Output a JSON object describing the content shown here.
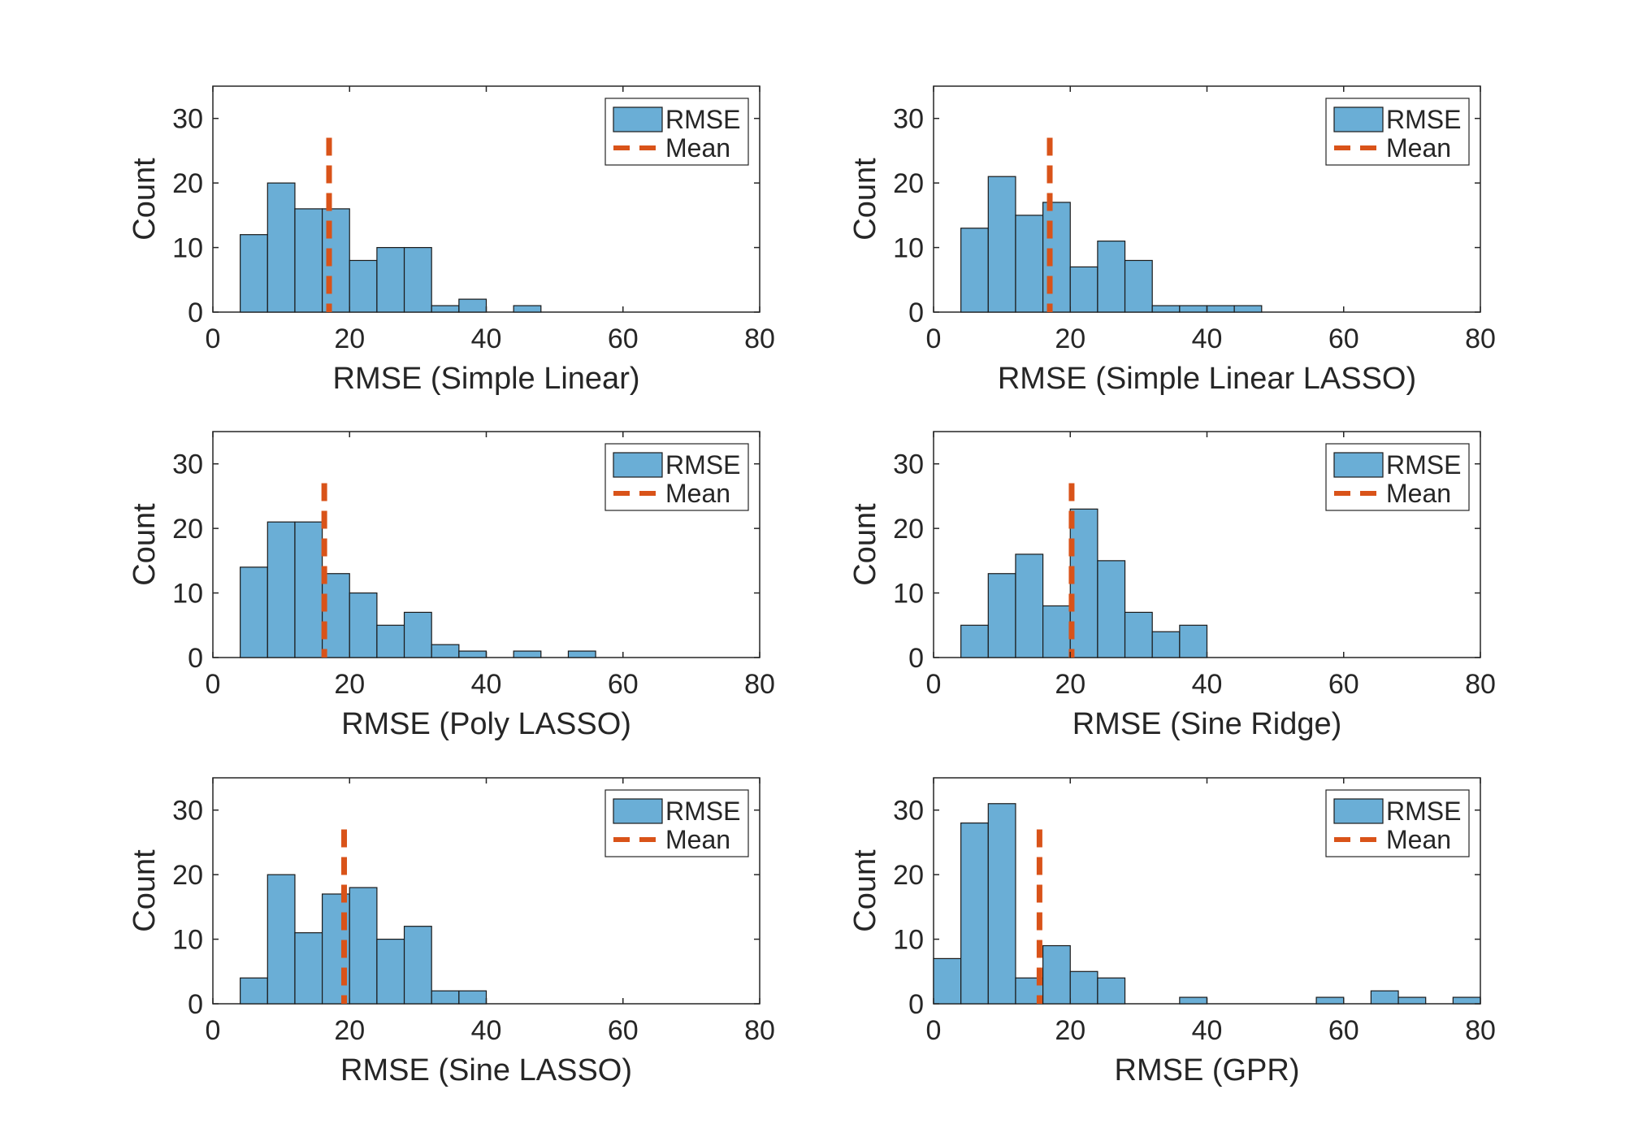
{
  "style": {
    "bar_fill": "#6aaed6",
    "bar_edge": "#1a1a1a",
    "mean_color": "#d95319",
    "axis_color": "#262626"
  },
  "legend": {
    "bar_label": "RMSE",
    "mean_label": "Mean",
    "placement": "top-right"
  },
  "chart_data": [
    {
      "type": "bar",
      "xlabel": "RMSE (Simple Linear)",
      "ylabel": "Count",
      "xlim": [
        0,
        80
      ],
      "ylim": [
        0,
        35
      ],
      "xticks": [
        0,
        20,
        40,
        60,
        80
      ],
      "yticks": [
        0,
        10,
        20,
        30
      ],
      "bin_edges": [
        4,
        8,
        12,
        16,
        20,
        24,
        28,
        32,
        36,
        40,
        44,
        48
      ],
      "values": [
        12,
        20,
        16,
        16,
        8,
        10,
        10,
        1,
        2,
        0,
        1
      ],
      "mean": 17
    },
    {
      "type": "bar",
      "xlabel": "RMSE (Simple Linear LASSO)",
      "ylabel": "Count",
      "xlim": [
        0,
        80
      ],
      "ylim": [
        0,
        35
      ],
      "xticks": [
        0,
        20,
        40,
        60,
        80
      ],
      "yticks": [
        0,
        10,
        20,
        30
      ],
      "bin_edges": [
        4,
        8,
        12,
        16,
        20,
        24,
        28,
        32,
        36,
        40,
        44,
        48
      ],
      "values": [
        13,
        21,
        15,
        17,
        7,
        11,
        8,
        1,
        1,
        1,
        1
      ],
      "mean": 17
    },
    {
      "type": "bar",
      "xlabel": "RMSE (Poly LASSO)",
      "ylabel": "Count",
      "xlim": [
        0,
        80
      ],
      "ylim": [
        0,
        35
      ],
      "xticks": [
        0,
        20,
        40,
        60,
        80
      ],
      "yticks": [
        0,
        10,
        20,
        30
      ],
      "bin_edges": [
        4,
        8,
        12,
        16,
        20,
        24,
        28,
        32,
        36,
        40,
        44,
        48,
        52,
        56
      ],
      "values": [
        14,
        21,
        21,
        13,
        10,
        5,
        7,
        2,
        1,
        0,
        1,
        0,
        1
      ],
      "mean": 16.3
    },
    {
      "type": "bar",
      "xlabel": "RMSE (Sine Ridge)",
      "ylabel": "Count",
      "xlim": [
        0,
        80
      ],
      "ylim": [
        0,
        35
      ],
      "xticks": [
        0,
        20,
        40,
        60,
        80
      ],
      "yticks": [
        0,
        10,
        20,
        30
      ],
      "bin_edges": [
        4,
        8,
        12,
        16,
        20,
        24,
        28,
        32,
        36,
        40
      ],
      "values": [
        5,
        13,
        16,
        8,
        23,
        15,
        7,
        4,
        5
      ],
      "mean": 20.2
    },
    {
      "type": "bar",
      "xlabel": "RMSE (Sine LASSO)",
      "ylabel": "Count",
      "xlim": [
        0,
        80
      ],
      "ylim": [
        0,
        35
      ],
      "xticks": [
        0,
        20,
        40,
        60,
        80
      ],
      "yticks": [
        0,
        10,
        20,
        30
      ],
      "bin_edges": [
        4,
        8,
        12,
        16,
        20,
        24,
        28,
        32,
        36,
        40
      ],
      "values": [
        4,
        20,
        11,
        17,
        18,
        10,
        12,
        2,
        2
      ],
      "mean": 19.2
    },
    {
      "type": "bar",
      "xlabel": "RMSE (GPR)",
      "ylabel": "Count",
      "xlim": [
        0,
        80
      ],
      "ylim": [
        0,
        35
      ],
      "xticks": [
        0,
        20,
        40,
        60,
        80
      ],
      "yticks": [
        0,
        10,
        20,
        30
      ],
      "bin_edges": [
        0,
        4,
        8,
        12,
        16,
        20,
        24,
        28,
        32,
        36,
        40,
        44,
        48,
        52,
        56,
        60,
        64,
        68,
        72,
        76,
        80
      ],
      "values": [
        7,
        28,
        31,
        4,
        9,
        5,
        4,
        0,
        0,
        1,
        0,
        0,
        0,
        0,
        1,
        0,
        2,
        1,
        0,
        1
      ],
      "mean": 15.5
    }
  ]
}
